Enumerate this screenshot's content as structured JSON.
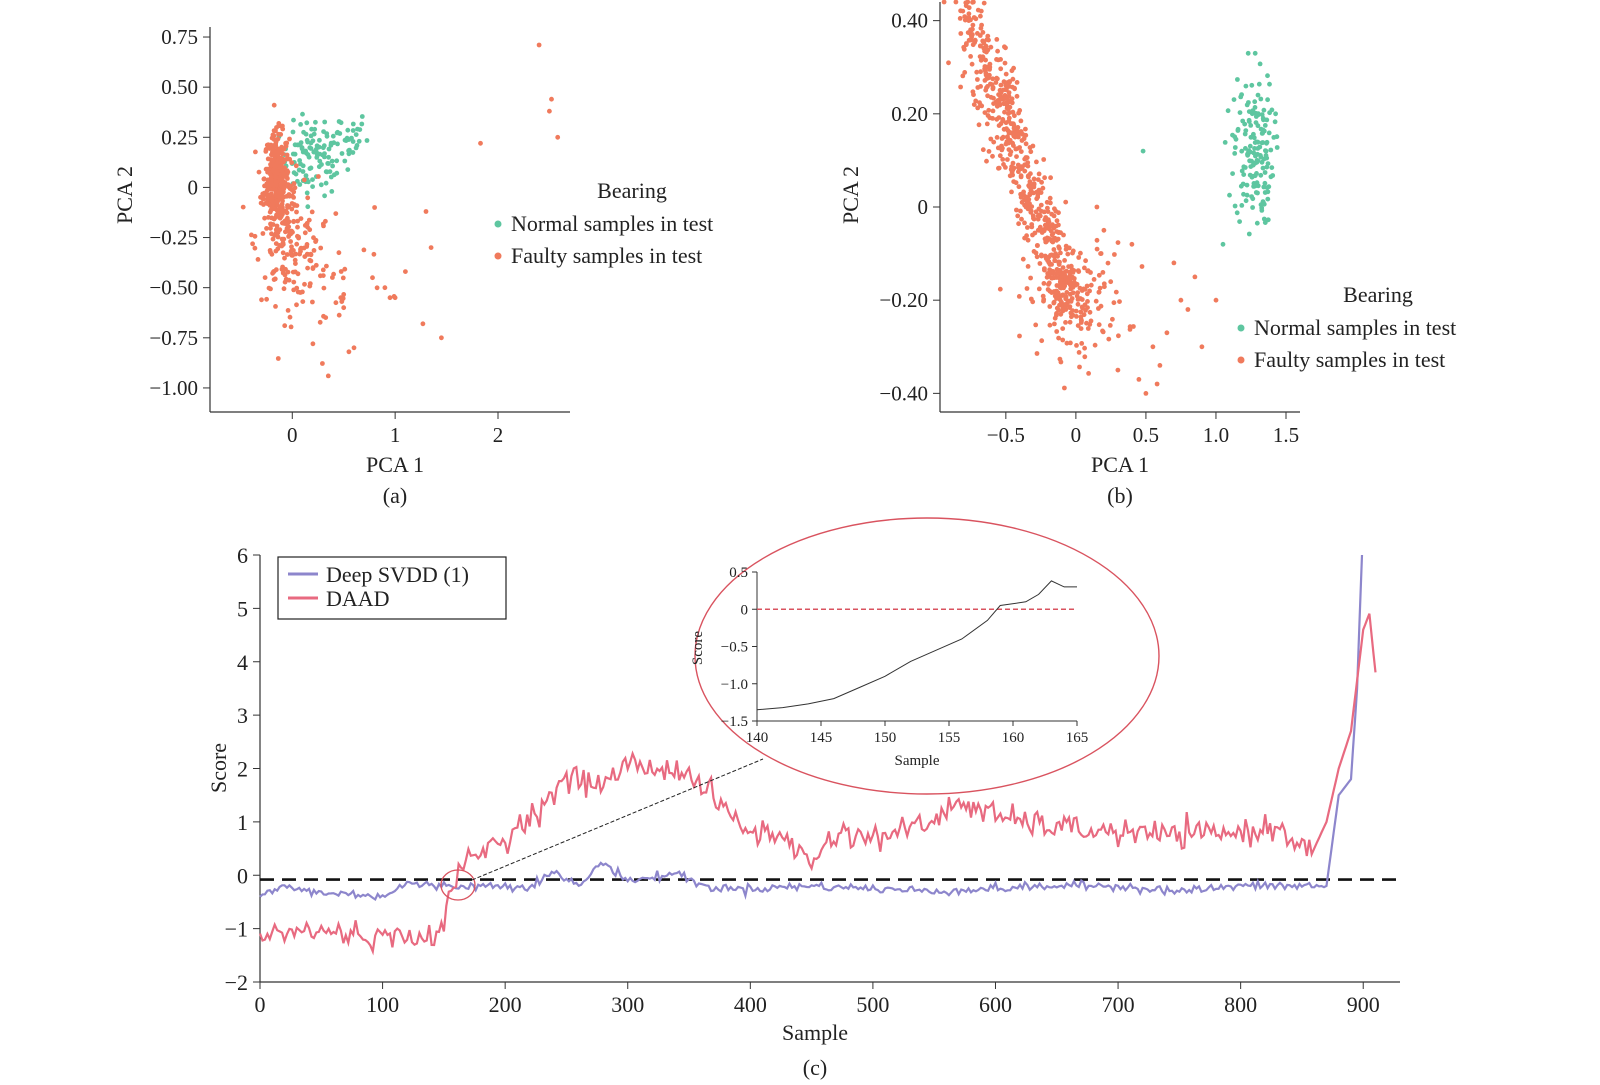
{
  "colors": {
    "normal": "#5ec6a0",
    "faulty": "#f07a5c",
    "svdd": "#8d86cc",
    "daad": "#e86a80",
    "threshold": "#111111",
    "ellipse": "#d9535f",
    "axis": "#333333"
  },
  "chart_data": [
    {
      "id": "a",
      "type": "scatter",
      "caption": "(a)",
      "xlabel": "PCA 1",
      "ylabel": "PCA 2",
      "xticks": [
        "0",
        "1",
        "2"
      ],
      "yticks": [
        "0.75",
        "0.50",
        "0.25",
        "0",
        "−0.25",
        "−0.50",
        "−0.75",
        "−1.00"
      ],
      "xlim": [
        -0.8,
        2.7
      ],
      "ylim": [
        -1.12,
        0.8
      ],
      "legend": {
        "title": "Bearing",
        "entries": [
          "Normal samples in test",
          "Faulty samples in test"
        ],
        "placement": "right"
      },
      "series": [
        {
          "name": "Normal samples in test",
          "clusters": [
            {
              "cx": 0.2,
              "cy": 0.14,
              "sx": 0.16,
              "sy": 0.09,
              "n": 110
            },
            {
              "cx": 0.5,
              "cy": 0.25,
              "sx": 0.12,
              "sy": 0.07,
              "n": 30
            }
          ]
        },
        {
          "name": "Faulty samples in test",
          "clusters": [
            {
              "cx": -0.15,
              "cy": 0.05,
              "sx": 0.06,
              "sy": 0.11,
              "n": 320
            },
            {
              "cx": -0.05,
              "cy": -0.25,
              "sx": 0.15,
              "sy": 0.15,
              "n": 170
            },
            {
              "cx": 0.35,
              "cy": -0.45,
              "sx": 0.3,
              "sy": 0.15,
              "n": 45
            }
          ],
          "points": [
            [
              2.4,
              0.71
            ],
            [
              2.52,
              0.44
            ],
            [
              2.5,
              0.38
            ],
            [
              2.58,
              0.25
            ],
            [
              1.83,
              0.22
            ],
            [
              1.3,
              -0.12
            ],
            [
              1.35,
              -0.3
            ],
            [
              1.45,
              -0.75
            ],
            [
              1.27,
              -0.68
            ],
            [
              1.1,
              -0.42
            ],
            [
              0.95,
              -0.55
            ],
            [
              0.6,
              -0.8
            ],
            [
              0.55,
              -0.82
            ],
            [
              0.35,
              -0.94
            ],
            [
              0.2,
              -0.78
            ],
            [
              0.8,
              -0.1
            ],
            [
              0.9,
              -0.5
            ],
            [
              1.0,
              -0.55
            ],
            [
              0.78,
              -0.45
            ],
            [
              0.5,
              -0.6
            ]
          ]
        }
      ]
    },
    {
      "id": "b",
      "type": "scatter",
      "caption": "(b)",
      "xlabel": "PCA 1",
      "ylabel": "PCA 2",
      "xticks": [
        "−0.5",
        "0",
        "0.5",
        "1.0",
        "1.5"
      ],
      "yticks": [
        "0.40",
        "0.20",
        "0",
        "−0.20",
        "−0.40"
      ],
      "xlim": [
        -0.97,
        1.6
      ],
      "ylim": [
        -0.44,
        0.44
      ],
      "legend": {
        "title": "Bearing",
        "entries": [
          "Normal samples in test",
          "Faulty samples in test"
        ],
        "placement": "lower right"
      },
      "series": [
        {
          "name": "Normal samples in test",
          "clusters": [
            {
              "cx": 1.27,
              "cy": 0.12,
              "sx": 0.07,
              "sy": 0.08,
              "n": 170
            }
          ],
          "points": [
            [
              0.48,
              0.12
            ],
            [
              1.23,
              0.33
            ],
            [
              1.28,
              0.33
            ],
            [
              1.05,
              -0.08
            ]
          ]
        },
        {
          "name": "Faulty samples in test",
          "band": {
            "x0": -0.8,
            "y0": 0.43,
            "x1": -0.05,
            "y1": -0.2,
            "spread_x": 0.06,
            "spread_y": 0.04,
            "n": 560
          },
          "clusters": [
            {
              "cx": 0.0,
              "cy": -0.2,
              "sx": 0.18,
              "sy": 0.06,
              "n": 160
            }
          ],
          "points": [
            [
              0.55,
              -0.3
            ],
            [
              0.6,
              -0.34
            ],
            [
              0.65,
              -0.27
            ],
            [
              0.7,
              -0.12
            ],
            [
              0.75,
              -0.2
            ],
            [
              0.8,
              -0.22
            ],
            [
              0.9,
              -0.3
            ],
            [
              1.0,
              -0.2
            ],
            [
              0.5,
              -0.4
            ],
            [
              0.58,
              -0.38
            ],
            [
              0.45,
              -0.37
            ],
            [
              0.3,
              -0.35
            ],
            [
              0.4,
              -0.08
            ],
            [
              0.15,
              0.0
            ],
            [
              0.2,
              -0.05
            ],
            [
              0.85,
              -0.15
            ]
          ]
        }
      ]
    },
    {
      "id": "c",
      "type": "line",
      "caption": "(c)",
      "xlabel": "Sample",
      "ylabel": "Score",
      "xlim": [
        0,
        930
      ],
      "ylim": [
        -2,
        6
      ],
      "xticks": [
        0,
        100,
        200,
        300,
        400,
        500,
        600,
        700,
        800,
        900
      ],
      "yticks": [
        6,
        5,
        4,
        3,
        2,
        1,
        0,
        -1,
        -2
      ],
      "threshold": -0.08,
      "legend": {
        "entries": [
          "Deep SVDD (1)",
          "DAAD"
        ],
        "placement": "upper left"
      },
      "series": [
        {
          "name": "Deep SVDD (1)",
          "x": [
            0,
            20,
            40,
            60,
            80,
            100,
            120,
            140,
            160,
            180,
            200,
            220,
            240,
            260,
            280,
            300,
            320,
            340,
            360,
            380,
            400,
            450,
            500,
            550,
            600,
            650,
            700,
            750,
            800,
            850,
            870,
            880,
            890,
            895,
            899
          ],
          "y": [
            -0.4,
            -0.2,
            -0.3,
            -0.35,
            -0.35,
            -0.4,
            -0.15,
            -0.2,
            -0.2,
            -0.2,
            -0.2,
            -0.2,
            0.05,
            -0.2,
            0.25,
            -0.1,
            -0.05,
            0.05,
            -0.2,
            -0.25,
            -0.25,
            -0.2,
            -0.25,
            -0.3,
            -0.25,
            -0.2,
            -0.2,
            -0.3,
            -0.2,
            -0.2,
            -0.2,
            1.5,
            1.8,
            3.5,
            6.0
          ],
          "noise": 0.04
        },
        {
          "name": "DAAD",
          "x": [
            0,
            20,
            50,
            80,
            110,
            130,
            140,
            150,
            160,
            170,
            200,
            230,
            250,
            280,
            300,
            320,
            340,
            360,
            380,
            400,
            420,
            450,
            470,
            500,
            550,
            570,
            600,
            650,
            700,
            750,
            800,
            830,
            850,
            860,
            870,
            880,
            890,
            900,
            905,
            910
          ],
          "y": [
            -1.2,
            -1.05,
            -1.05,
            -1.1,
            -1.2,
            -1.05,
            -1.3,
            -0.8,
            -0.1,
            0.3,
            0.7,
            1.3,
            1.8,
            1.7,
            2.1,
            2.0,
            2.0,
            1.7,
            1.2,
            0.8,
            0.8,
            0.25,
            0.8,
            0.7,
            1.0,
            1.4,
            1.1,
            0.9,
            0.8,
            0.75,
            0.8,
            0.9,
            0.6,
            0.5,
            1.0,
            2.0,
            2.7,
            4.6,
            4.9,
            3.8
          ],
          "noise": 0.12
        }
      ],
      "inset": {
        "type": "line",
        "xlabel": "Sample",
        "ylabel": "Score",
        "xlim": [
          140,
          165
        ],
        "ylim": [
          -1.5,
          0.5
        ],
        "xticks": [
          140,
          145,
          150,
          155,
          160,
          165
        ],
        "yticks": [
          "0.5",
          "0",
          "−0.5",
          "−1.0",
          "−1.5"
        ],
        "threshold": 0,
        "x": [
          140,
          142,
          144,
          146,
          148,
          150,
          152,
          154,
          156,
          158,
          159,
          161,
          162,
          163,
          164,
          165
        ],
        "y": [
          -1.35,
          -1.32,
          -1.27,
          -1.2,
          -1.05,
          -0.9,
          -0.7,
          -0.55,
          -0.4,
          -0.15,
          0.05,
          0.1,
          0.2,
          0.38,
          0.3,
          0.3
        ]
      }
    }
  ]
}
